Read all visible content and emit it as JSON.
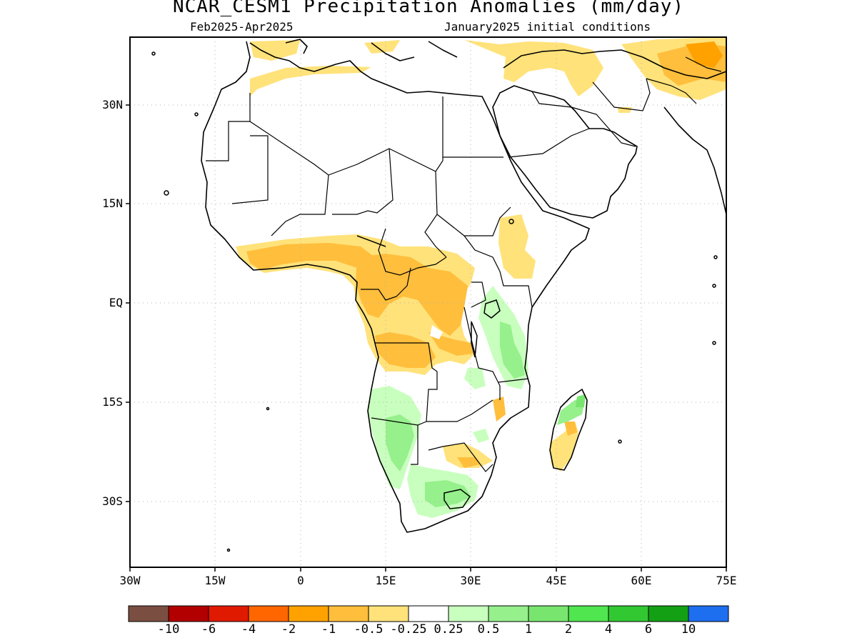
{
  "title": "NCAR_CESM1 Precipitation Anomalies (mm/day)",
  "subtitle_left": "Feb2025-Apr2025",
  "subtitle_right": "January2025 initial conditions",
  "lat_labels": [
    "30N",
    "15N",
    "EQ",
    "15S",
    "30S"
  ],
  "lon_labels": [
    "30W",
    "15W",
    "0",
    "15E",
    "30E",
    "45E",
    "60E",
    "75E"
  ],
  "colorbar": {
    "colors": [
      "#7a4f42",
      "#b20000",
      "#e01a00",
      "#ff6600",
      "#ffa200",
      "#ffbe3c",
      "#ffe27a",
      "#ffffff",
      "#c8ffbe",
      "#96f08c",
      "#78e66e",
      "#50e650",
      "#32c832",
      "#14a014",
      "#1e6ef0"
    ],
    "labels": [
      "-10",
      "-6",
      "-4",
      "-2",
      "-1",
      "-0.5",
      "-0.25",
      "0.25",
      "0.5",
      "1",
      "2",
      "4",
      "6",
      "10"
    ]
  },
  "chart_data": {
    "type": "heatmap",
    "title": "NCAR_CESM1 Precipitation Anomalies (mm/day)",
    "region": "Africa, 30W-75E, 40S-40N",
    "units": "mm/day",
    "xlim": [
      -30,
      75
    ],
    "ylim": [
      -40,
      40
    ],
    "contour_levels": [
      -10,
      -6,
      -4,
      -2,
      -1,
      -0.5,
      -0.25,
      0.25,
      0.5,
      1,
      2,
      4,
      6,
      10
    ],
    "anomaly_regions": [
      {
        "area": "Southern West Africa / Gulf of Guinea coast",
        "category": "-1 to -0.5"
      },
      {
        "area": "Central Africa / Congo basin",
        "category": "-1 to -0.25"
      },
      {
        "area": "Angola / southern Congo",
        "category": "-1 to -0.25"
      },
      {
        "area": "Ethiopian highlands",
        "category": "-0.5 to -0.25"
      },
      {
        "area": "Northwest Africa / Mediterranean coast",
        "category": "-0.5 to -0.25"
      },
      {
        "area": "Middle East and Afghanistan / Pakistan",
        "category": "-2 to -0.25"
      },
      {
        "area": "East Africa / Tanzania / Kenya coast",
        "category": "0.25 to 1"
      },
      {
        "area": "Namibia / Botswana",
        "category": "0.25 to 1"
      },
      {
        "area": "South Africa",
        "category": "0.25 to 1"
      },
      {
        "area": "Northern Madagascar",
        "category": "0.25 to 1"
      },
      {
        "area": "Southern Madagascar / Mozambique",
        "category": "-0.5 to -0.25"
      }
    ]
  }
}
